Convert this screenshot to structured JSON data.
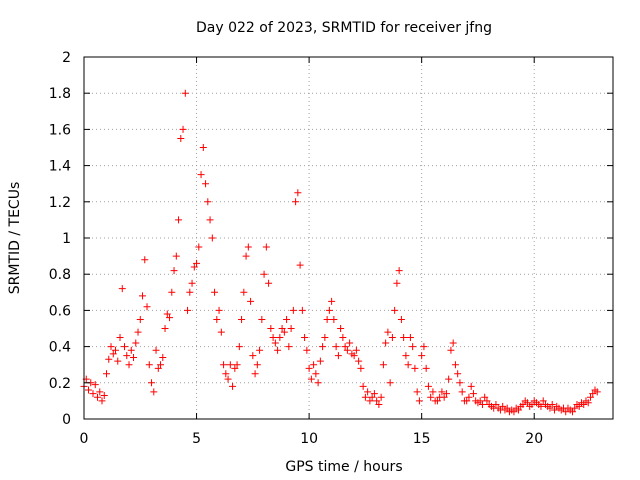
{
  "chart_data": {
    "type": "scatter",
    "title": "Day 022 of 2023, SRMTID for receiver jfng",
    "xlabel": "GPS time / hours",
    "ylabel": "SRMTID / TECUs",
    "xlim": [
      0,
      23.5
    ],
    "ylim": [
      0,
      2
    ],
    "x_ticks": [
      0,
      5,
      10,
      15,
      20
    ],
    "y_ticks": [
      0,
      0.2,
      0.4,
      0.6,
      0.8,
      1,
      1.2,
      1.4,
      1.6,
      1.8,
      2
    ],
    "grid": true,
    "marker": "+",
    "series": [
      {
        "name": "SRMTID",
        "color": "#ff0000",
        "points": [
          [
            0.0,
            0.18
          ],
          [
            0.1,
            0.22
          ],
          [
            0.2,
            0.16
          ],
          [
            0.3,
            0.2
          ],
          [
            0.4,
            0.14
          ],
          [
            0.5,
            0.19
          ],
          [
            0.6,
            0.12
          ],
          [
            0.7,
            0.15
          ],
          [
            0.8,
            0.1
          ],
          [
            0.9,
            0.13
          ],
          [
            1.0,
            0.25
          ],
          [
            1.1,
            0.33
          ],
          [
            1.2,
            0.4
          ],
          [
            1.3,
            0.36
          ],
          [
            1.4,
            0.38
          ],
          [
            1.5,
            0.32
          ],
          [
            1.6,
            0.45
          ],
          [
            1.7,
            0.72
          ],
          [
            1.8,
            0.4
          ],
          [
            1.9,
            0.35
          ],
          [
            2.0,
            0.3
          ],
          [
            2.1,
            0.38
          ],
          [
            2.2,
            0.34
          ],
          [
            2.3,
            0.42
          ],
          [
            2.4,
            0.48
          ],
          [
            2.5,
            0.55
          ],
          [
            2.6,
            0.68
          ],
          [
            2.7,
            0.88
          ],
          [
            2.8,
            0.62
          ],
          [
            2.9,
            0.3
          ],
          [
            3.0,
            0.2
          ],
          [
            3.1,
            0.15
          ],
          [
            3.2,
            0.38
          ],
          [
            3.3,
            0.28
          ],
          [
            3.4,
            0.3
          ],
          [
            3.5,
            0.34
          ],
          [
            3.6,
            0.5
          ],
          [
            3.7,
            0.58
          ],
          [
            3.8,
            0.56
          ],
          [
            3.9,
            0.7
          ],
          [
            4.0,
            0.82
          ],
          [
            4.1,
            0.9
          ],
          [
            4.2,
            1.1
          ],
          [
            4.3,
            1.55
          ],
          [
            4.4,
            1.6
          ],
          [
            4.5,
            1.8
          ],
          [
            4.6,
            0.6
          ],
          [
            4.7,
            0.7
          ],
          [
            4.8,
            0.75
          ],
          [
            4.9,
            0.84
          ],
          [
            5.0,
            0.86
          ],
          [
            5.1,
            0.95
          ],
          [
            5.2,
            1.35
          ],
          [
            5.3,
            1.5
          ],
          [
            5.4,
            1.3
          ],
          [
            5.5,
            1.2
          ],
          [
            5.6,
            1.1
          ],
          [
            5.7,
            1.0
          ],
          [
            5.8,
            0.7
          ],
          [
            5.9,
            0.55
          ],
          [
            6.0,
            0.6
          ],
          [
            6.1,
            0.48
          ],
          [
            6.2,
            0.3
          ],
          [
            6.3,
            0.25
          ],
          [
            6.4,
            0.22
          ],
          [
            6.5,
            0.3
          ],
          [
            6.6,
            0.18
          ],
          [
            6.7,
            0.28
          ],
          [
            6.8,
            0.3
          ],
          [
            6.9,
            0.4
          ],
          [
            7.0,
            0.55
          ],
          [
            7.1,
            0.7
          ],
          [
            7.2,
            0.9
          ],
          [
            7.3,
            0.95
          ],
          [
            7.4,
            0.65
          ],
          [
            7.5,
            0.35
          ],
          [
            7.6,
            0.25
          ],
          [
            7.7,
            0.3
          ],
          [
            7.8,
            0.38
          ],
          [
            7.9,
            0.55
          ],
          [
            8.0,
            0.8
          ],
          [
            8.1,
            0.95
          ],
          [
            8.2,
            0.75
          ],
          [
            8.3,
            0.5
          ],
          [
            8.4,
            0.45
          ],
          [
            8.5,
            0.42
          ],
          [
            8.6,
            0.38
          ],
          [
            8.7,
            0.45
          ],
          [
            8.8,
            0.5
          ],
          [
            8.9,
            0.48
          ],
          [
            9.0,
            0.55
          ],
          [
            9.1,
            0.4
          ],
          [
            9.2,
            0.5
          ],
          [
            9.3,
            0.6
          ],
          [
            9.4,
            1.2
          ],
          [
            9.5,
            1.25
          ],
          [
            9.6,
            0.85
          ],
          [
            9.7,
            0.6
          ],
          [
            9.8,
            0.45
          ],
          [
            9.9,
            0.38
          ],
          [
            10.0,
            0.28
          ],
          [
            10.1,
            0.22
          ],
          [
            10.2,
            0.3
          ],
          [
            10.3,
            0.25
          ],
          [
            10.4,
            0.2
          ],
          [
            10.5,
            0.32
          ],
          [
            10.6,
            0.4
          ],
          [
            10.7,
            0.45
          ],
          [
            10.8,
            0.55
          ],
          [
            10.9,
            0.6
          ],
          [
            11.0,
            0.65
          ],
          [
            11.1,
            0.55
          ],
          [
            11.2,
            0.4
          ],
          [
            11.3,
            0.35
          ],
          [
            11.4,
            0.5
          ],
          [
            11.5,
            0.45
          ],
          [
            11.6,
            0.4
          ],
          [
            11.7,
            0.38
          ],
          [
            11.8,
            0.42
          ],
          [
            11.9,
            0.36
          ],
          [
            12.0,
            0.35
          ],
          [
            12.1,
            0.38
          ],
          [
            12.2,
            0.32
          ],
          [
            12.3,
            0.28
          ],
          [
            12.4,
            0.18
          ],
          [
            12.5,
            0.12
          ],
          [
            12.6,
            0.15
          ],
          [
            12.7,
            0.1
          ],
          [
            12.8,
            0.12
          ],
          [
            12.9,
            0.14
          ],
          [
            13.0,
            0.1
          ],
          [
            13.1,
            0.08
          ],
          [
            13.2,
            0.12
          ],
          [
            13.3,
            0.3
          ],
          [
            13.4,
            0.42
          ],
          [
            13.5,
            0.48
          ],
          [
            13.6,
            0.2
          ],
          [
            13.7,
            0.45
          ],
          [
            13.8,
            0.6
          ],
          [
            13.9,
            0.75
          ],
          [
            14.0,
            0.82
          ],
          [
            14.1,
            0.55
          ],
          [
            14.2,
            0.45
          ],
          [
            14.3,
            0.35
          ],
          [
            14.4,
            0.3
          ],
          [
            14.5,
            0.45
          ],
          [
            14.6,
            0.4
          ],
          [
            14.7,
            0.28
          ],
          [
            14.8,
            0.15
          ],
          [
            14.9,
            0.1
          ],
          [
            15.0,
            0.35
          ],
          [
            15.1,
            0.4
          ],
          [
            15.2,
            0.28
          ],
          [
            15.3,
            0.18
          ],
          [
            15.4,
            0.12
          ],
          [
            15.5,
            0.15
          ],
          [
            15.6,
            0.1
          ],
          [
            15.7,
            0.1
          ],
          [
            15.8,
            0.12
          ],
          [
            15.9,
            0.15
          ],
          [
            16.0,
            0.12
          ],
          [
            16.1,
            0.14
          ],
          [
            16.2,
            0.22
          ],
          [
            16.3,
            0.38
          ],
          [
            16.4,
            0.42
          ],
          [
            16.5,
            0.3
          ],
          [
            16.6,
            0.25
          ],
          [
            16.7,
            0.2
          ],
          [
            16.8,
            0.15
          ],
          [
            16.9,
            0.1
          ],
          [
            17.0,
            0.1
          ],
          [
            17.1,
            0.12
          ],
          [
            17.2,
            0.18
          ],
          [
            17.3,
            0.14
          ],
          [
            17.4,
            0.1
          ],
          [
            17.5,
            0.09
          ],
          [
            17.6,
            0.1
          ],
          [
            17.7,
            0.08
          ],
          [
            17.8,
            0.12
          ],
          [
            17.9,
            0.1
          ],
          [
            18.0,
            0.08
          ],
          [
            18.1,
            0.07
          ],
          [
            18.2,
            0.06
          ],
          [
            18.3,
            0.08
          ],
          [
            18.4,
            0.06
          ],
          [
            18.5,
            0.05
          ],
          [
            18.6,
            0.07
          ],
          [
            18.7,
            0.05
          ],
          [
            18.8,
            0.06
          ],
          [
            18.9,
            0.04
          ],
          [
            19.0,
            0.05
          ],
          [
            19.1,
            0.04
          ],
          [
            19.2,
            0.06
          ],
          [
            19.3,
            0.05
          ],
          [
            19.4,
            0.07
          ],
          [
            19.5,
            0.08
          ],
          [
            19.6,
            0.1
          ],
          [
            19.7,
            0.09
          ],
          [
            19.8,
            0.07
          ],
          [
            19.9,
            0.08
          ],
          [
            20.0,
            0.1
          ],
          [
            20.1,
            0.09
          ],
          [
            20.2,
            0.08
          ],
          [
            20.3,
            0.07
          ],
          [
            20.4,
            0.1
          ],
          [
            20.5,
            0.08
          ],
          [
            20.6,
            0.07
          ],
          [
            20.7,
            0.06
          ],
          [
            20.8,
            0.08
          ],
          [
            20.9,
            0.05
          ],
          [
            21.0,
            0.07
          ],
          [
            21.1,
            0.06
          ],
          [
            21.2,
            0.05
          ],
          [
            21.3,
            0.06
          ],
          [
            21.4,
            0.04
          ],
          [
            21.5,
            0.06
          ],
          [
            21.6,
            0.05
          ],
          [
            21.7,
            0.04
          ],
          [
            21.8,
            0.06
          ],
          [
            21.9,
            0.08
          ],
          [
            22.0,
            0.07
          ],
          [
            22.1,
            0.09
          ],
          [
            22.2,
            0.08
          ],
          [
            22.3,
            0.1
          ],
          [
            22.4,
            0.09
          ],
          [
            22.5,
            0.12
          ],
          [
            22.6,
            0.14
          ],
          [
            22.7,
            0.16
          ],
          [
            22.8,
            0.15
          ]
        ]
      }
    ]
  }
}
